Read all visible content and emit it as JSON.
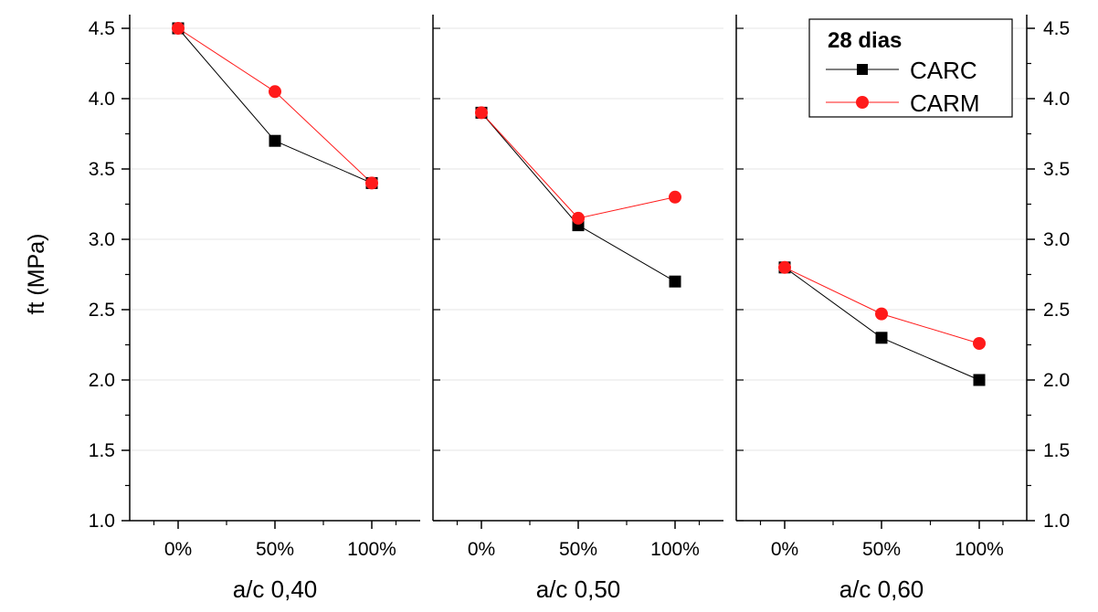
{
  "chart_data": {
    "type": "line",
    "ylabel": "ft (MPa)",
    "ylim": [
      1.0,
      4.5
    ],
    "yticks": [
      "1.0",
      "1.5",
      "2.0",
      "2.5",
      "3.0",
      "3.5",
      "4.0",
      "4.5"
    ],
    "grid": true,
    "legend": {
      "title": "28 dias",
      "position": "top-right"
    },
    "colors": {
      "CARC": "#000000",
      "CARM": "#ff1a1a",
      "grid": "#e6e6e6"
    },
    "markers": {
      "CARC": "square",
      "CARM": "circle"
    },
    "panels": [
      {
        "xlabel": "a/c 0,40",
        "categories": [
          "0%",
          "50%",
          "100%"
        ],
        "series": [
          {
            "name": "CARC",
            "values": [
              4.5,
              3.7,
              3.4
            ]
          },
          {
            "name": "CARM",
            "values": [
              4.5,
              4.05,
              3.4
            ]
          }
        ]
      },
      {
        "xlabel": "a/c 0,50",
        "categories": [
          "0%",
          "50%",
          "100%"
        ],
        "series": [
          {
            "name": "CARC",
            "values": [
              3.9,
              3.1,
              2.7
            ]
          },
          {
            "name": "CARM",
            "values": [
              3.9,
              3.15,
              3.3
            ]
          }
        ]
      },
      {
        "xlabel": "a/c 0,60",
        "categories": [
          "0%",
          "50%",
          "100%"
        ],
        "series": [
          {
            "name": "CARC",
            "values": [
              2.8,
              2.3,
              2.0
            ]
          },
          {
            "name": "CARM",
            "values": [
              2.8,
              2.47,
              2.26
            ]
          }
        ]
      }
    ]
  }
}
